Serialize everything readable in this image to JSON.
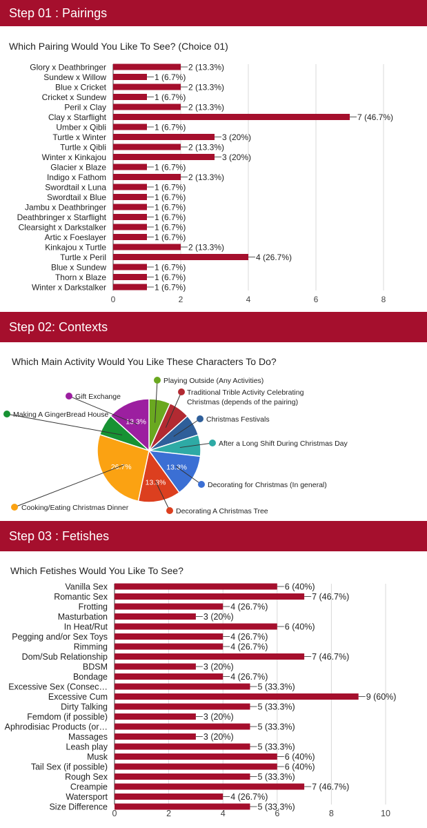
{
  "sections": [
    {
      "banner": "Step 01 : Pairings",
      "question": "Which Pairing Would You Like To See? (Choice 01)"
    },
    {
      "banner": "Step 02: Contexts",
      "question": "Which Main Activity Would You Like These Characters To Do?"
    },
    {
      "banner": "Step 03 : Fetishes",
      "question": "Which Fetishes Would You Like To See?"
    }
  ],
  "chart_data": [
    {
      "type": "bar",
      "orientation": "horizontal",
      "title": "Which Pairing Would You Like To See? (Choice 01)",
      "categories": [
        "Glory x Deathbringer",
        "Sundew x Willow",
        "Blue x Cricket",
        "Cricket x Sundew",
        "Peril x Clay",
        "Clay x Starflight",
        "Umber x Qibli",
        "Turtle x Winter",
        "Turtle x Qibli",
        "Winter x Kinkajou",
        "Glacier x Blaze",
        "Indigo x Fathom",
        "Swordtail x Luna",
        "Swordtail x Blue",
        "Jambu x Deathbringer",
        "Deathbringer x Starflight",
        "Clearsight x Darkstalker",
        "Artic x Foeslayer",
        "Kinkajou x Turtle",
        "Turtle x Peril",
        "Blue x Sundew",
        "Thorn x Blaze",
        "Winter x Darkstalker"
      ],
      "values": [
        2,
        1,
        2,
        1,
        2,
        7,
        1,
        3,
        2,
        3,
        1,
        2,
        1,
        1,
        1,
        1,
        1,
        1,
        2,
        4,
        1,
        1,
        1
      ],
      "labels": [
        "2 (13.3%)",
        "1 (6.7%)",
        "2 (13.3%)",
        "1 (6.7%)",
        "2 (13.3%)",
        "7 (46.7%)",
        "1 (6.7%)",
        "3 (20%)",
        "2 (13.3%)",
        "3 (20%)",
        "1 (6.7%)",
        "2 (13.3%)",
        "1 (6.7%)",
        "1 (6.7%)",
        "1 (6.7%)",
        "1 (6.7%)",
        "1 (6.7%)",
        "1 (6.7%)",
        "2 (13.3%)",
        "4 (26.7%)",
        "1 (6.7%)",
        "1 (6.7%)",
        "1 (6.7%)"
      ],
      "xticks": [
        "0",
        "2",
        "4",
        "6",
        "8"
      ],
      "xlim": [
        0,
        8
      ],
      "bar_color": "#a50f2d"
    },
    {
      "type": "pie",
      "title": "Which Main Activity Would You Like These Characters To Do?",
      "slices": [
        {
          "name": "Playing Outside (Any Activities)",
          "value": 6.7,
          "color": "#6aa820",
          "label": ""
        },
        {
          "name": "Traditional Trible Activity Celebrating Christmas (depends of the pairing)",
          "value": 6.7,
          "color": "#b22a32",
          "label": ""
        },
        {
          "name": "Christmas Festivals",
          "value": 6.7,
          "color": "#2f5f9a",
          "label": ""
        },
        {
          "name": "After a Long Shift During Christmas Day",
          "value": 6.7,
          "color": "#2eaaa5",
          "label": ""
        },
        {
          "name": "Decorating for Christmas (In general)",
          "value": 13.3,
          "color": "#3b6fd4",
          "label": "13.3%"
        },
        {
          "name": "Decorating A Christmas Tree",
          "value": 13.3,
          "color": "#dc3f1f",
          "label": "13.3%"
        },
        {
          "name": "Cooking/Eating Christmas Dinner",
          "value": 26.7,
          "color": "#fba212",
          "label": "26.7%"
        },
        {
          "name": "Making A GingerBread House",
          "value": 6.7,
          "color": "#179233",
          "label": ""
        },
        {
          "name": "Gift Exchange",
          "value": 13.3,
          "color": "#9c1fa0",
          "label": "13.3%"
        }
      ]
    },
    {
      "type": "bar",
      "orientation": "horizontal",
      "title": "Which Fetishes Would You Like To See?",
      "categories": [
        "Vanilla Sex",
        "Romantic Sex",
        "Frotting",
        "Masturbation",
        "In Heat/Rut",
        "Pegging and/or Sex Toys",
        "Rimming",
        "Dom/Sub Relationship",
        "BDSM",
        "Bondage",
        "Excessive Sex (Consec…",
        "Excessive Cum",
        "Dirty Talking",
        "Femdom (if possible)",
        "Aphrodisiac Products (or…",
        "Massages",
        "Leash play",
        "Musk",
        "Tail Sex (if possible)",
        "Rough Sex",
        "Creampie",
        "Watersport",
        "Size Difference"
      ],
      "values": [
        6,
        7,
        4,
        3,
        6,
        4,
        4,
        7,
        3,
        4,
        5,
        9,
        5,
        3,
        5,
        3,
        5,
        6,
        6,
        5,
        7,
        4,
        5
      ],
      "labels": [
        "6 (40%)",
        "7 (46.7%)",
        "4 (26.7%)",
        "3 (20%)",
        "6 (40%)",
        "4 (26.7%)",
        "4 (26.7%)",
        "7 (46.7%)",
        "3 (20%)",
        "4 (26.7%)",
        "5 (33.3%)",
        "9 (60%)",
        "5 (33.3%)",
        "3 (20%)",
        "5 (33.3%)",
        "3 (20%)",
        "5 (33.3%)",
        "6 (40%)",
        "6 (40%)",
        "5 (33.3%)",
        "7 (46.7%)",
        "4 (26.7%)",
        "5 (33.3%)"
      ],
      "xticks": [
        "0",
        "2",
        "4",
        "6",
        "8",
        "10"
      ],
      "xlim": [
        0,
        10
      ],
      "bar_color": "#a50f2d"
    }
  ]
}
